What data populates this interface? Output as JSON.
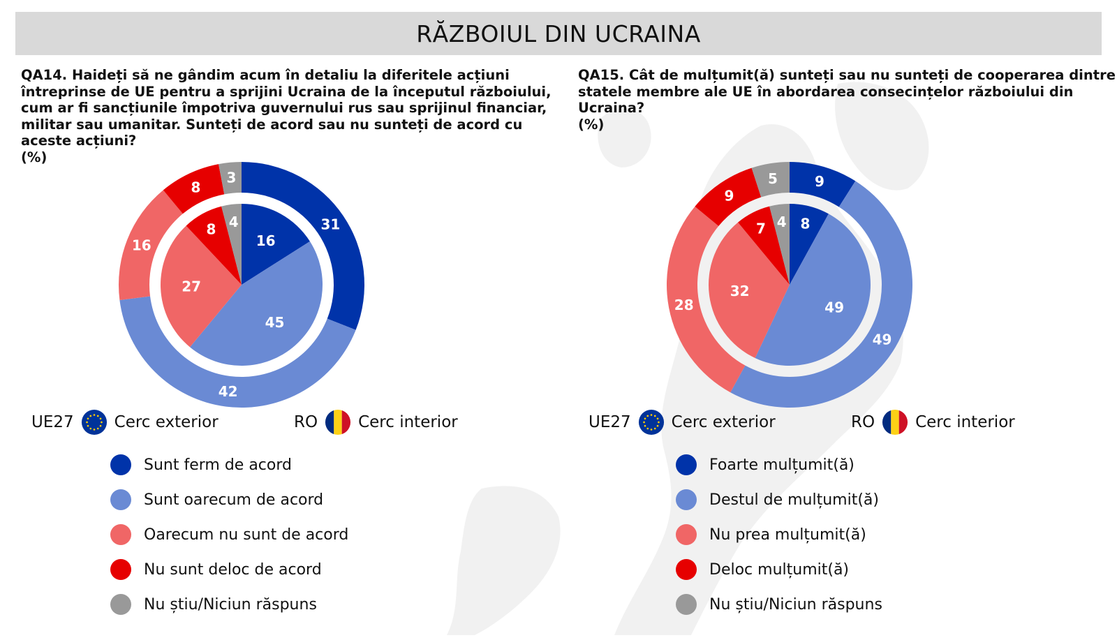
{
  "title": "RĂZBOIUL DIN UCRAINA",
  "colors": {
    "dark_blue": "#0033a9",
    "light_blue": "#6a8ad4",
    "light_red": "#f06666",
    "red": "#e60000",
    "grey": "#999999"
  },
  "circles_legend": {
    "eu_code": "UE27",
    "eu_label": "Cerc exterior",
    "ro_code": "RO",
    "ro_label": "Cerc interior",
    "eu_icon": "eu-flag-icon",
    "ro_icon": "romania-flag-icon"
  },
  "panels": [
    {
      "question": "QA14. Haideți să ne gândim acum în detaliu la diferitele acțiuni întreprinse de UE pentru a sprijini Ucraina de la începutul războiului, cum ar fi sancțiunile împotriva guvernului rus sau sprijinul financiar, militar sau umanitar. Sunteți de acord sau nu sunteți de acord cu aceste acțiuni?",
      "unit": "(%)",
      "legend": [
        "Sunt ferm de acord",
        "Sunt oarecum de acord",
        "Oarecum nu sunt de acord",
        "Nu sunt deloc de acord",
        "Nu știu/Niciun răspuns"
      ]
    },
    {
      "question": "QA15. Cât de mulțumit(ă) sunteți sau nu sunteți de cooperarea dintre statele membre ale UE în abordarea consecințelor războiului din Ucraina?",
      "unit": "(%)",
      "legend": [
        "Foarte mulțumit(ă)",
        "Destul de mulțumit(ă)",
        "Nu prea mulțumit(ă)",
        "Deloc mulțumit(ă)",
        "Nu știu/Niciun răspuns"
      ]
    }
  ],
  "chart_data": [
    {
      "type": "pie",
      "title": "QA14",
      "categories": [
        "Sunt ferm de acord",
        "Sunt oarecum de acord",
        "Oarecum nu sunt de acord",
        "Nu sunt deloc de acord",
        "Nu știu/Niciun răspuns"
      ],
      "series": [
        {
          "name": "UE27",
          "values": [
            31,
            42,
            16,
            8,
            3
          ]
        },
        {
          "name": "RO",
          "values": [
            16,
            45,
            27,
            8,
            4
          ]
        }
      ]
    },
    {
      "type": "pie",
      "title": "QA15",
      "categories": [
        "Foarte mulțumit(ă)",
        "Destul de mulțumit(ă)",
        "Nu prea mulțumit(ă)",
        "Deloc mulțumit(ă)",
        "Nu știu/Niciun răspuns"
      ],
      "series": [
        {
          "name": "UE27",
          "values": [
            9,
            49,
            28,
            9,
            5
          ]
        },
        {
          "name": "RO",
          "values": [
            8,
            49,
            32,
            7,
            4
          ]
        }
      ]
    }
  ]
}
